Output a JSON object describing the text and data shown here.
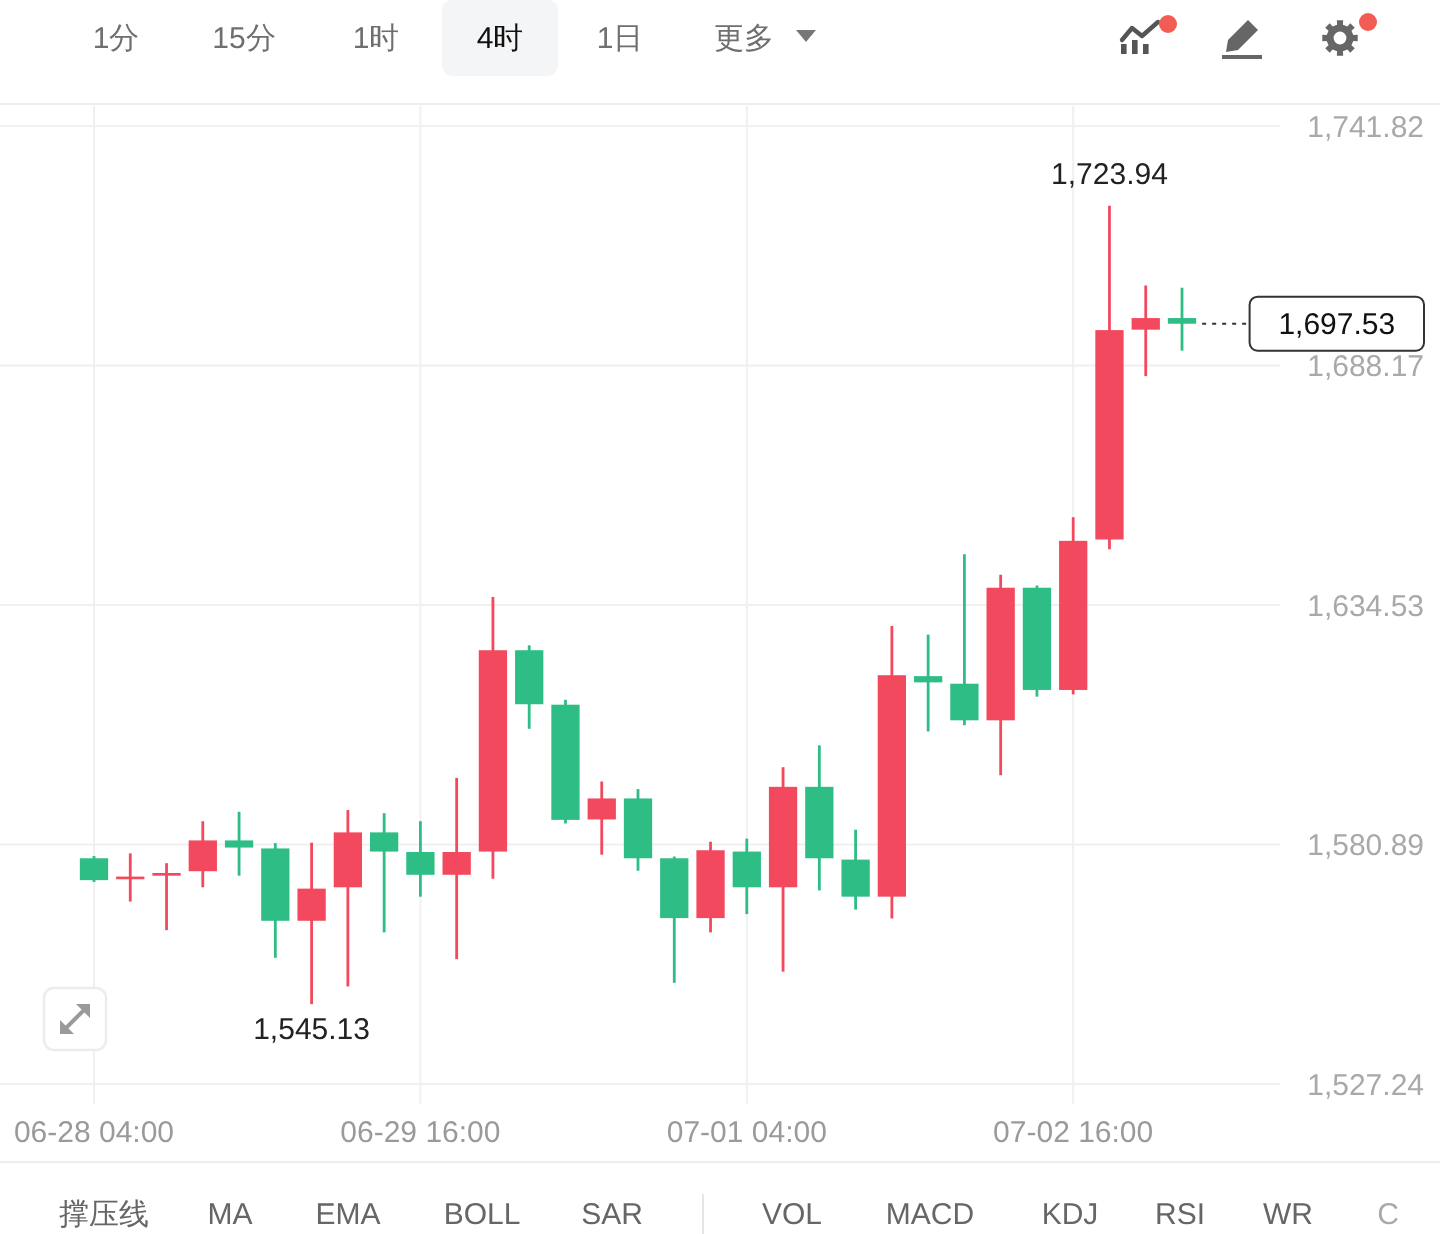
{
  "chart_data": [
    {
      "type": "other",
      "annotations": [
        "1分",
        "15分",
        "1时",
        "4时",
        "1日",
        "更多"
      ]
    },
    {
      "type": "candlestick",
      "categories": [
        "06-28 04:00",
        null,
        null,
        null,
        null,
        null,
        null,
        null,
        null,
        "06-29 16:00",
        null,
        null,
        null,
        null,
        null,
        null,
        null,
        null,
        "07-01 04:00",
        null,
        null,
        null,
        null,
        null,
        null,
        null,
        null,
        "07-02 16:00",
        null,
        null,
        null
      ],
      "ohlc": [
        [
          1577.8,
          1578.3,
          1572.5,
          1572.9
        ],
        [
          1573.1,
          1578.9,
          1568.1,
          1573.7
        ],
        [
          1573.9,
          1576.7,
          1561.7,
          1574.5
        ],
        [
          1574.9,
          1586.1,
          1571.3,
          1581.8
        ],
        [
          1581.8,
          1588.2,
          1573.9,
          1580.2
        ],
        [
          1580.0,
          1581.2,
          1555.5,
          1563.8
        ],
        [
          1563.8,
          1581.3,
          1545.13,
          1571.0
        ],
        [
          1571.3,
          1588.6,
          1549.1,
          1583.6
        ],
        [
          1583.6,
          1587.9,
          1561.2,
          1579.3
        ],
        [
          1579.2,
          1586.1,
          1569.2,
          1574.1
        ],
        [
          1574.1,
          1595.8,
          1555.2,
          1579.2
        ],
        [
          1579.3,
          1636.3,
          1573.2,
          1624.4
        ],
        [
          1624.4,
          1625.5,
          1606.8,
          1612.3
        ],
        [
          1612.2,
          1613.3,
          1585.6,
          1586.4
        ],
        [
          1586.5,
          1595.0,
          1578.6,
          1591.2
        ],
        [
          1591.2,
          1593.3,
          1575.0,
          1577.8
        ],
        [
          1577.8,
          1578.2,
          1549.9,
          1564.4
        ],
        [
          1564.4,
          1581.5,
          1561.2,
          1579.6
        ],
        [
          1579.3,
          1582.2,
          1565.3,
          1571.3
        ],
        [
          1571.3,
          1598.2,
          1552.4,
          1593.8
        ],
        [
          1593.8,
          1603.1,
          1570.6,
          1577.8
        ],
        [
          1577.5,
          1584.2,
          1566.3,
          1569.2
        ],
        [
          1569.2,
          1629.8,
          1564.3,
          1618.8
        ],
        [
          1618.6,
          1627.9,
          1606.2,
          1617.2
        ],
        [
          1616.9,
          1645.9,
          1607.6,
          1608.7
        ],
        [
          1608.7,
          1641.3,
          1596.4,
          1638.4
        ],
        [
          1638.4,
          1638.9,
          1614.0,
          1615.5
        ],
        [
          1615.5,
          1654.2,
          1614.5,
          1648.9
        ],
        [
          1649.2,
          1723.94,
          1647.0,
          1696.1
        ],
        [
          1696.2,
          1706.1,
          1685.8,
          1698.8
        ],
        [
          1698.8,
          1705.6,
          1691.5,
          1697.53
        ]
      ],
      "colors": [
        "#2ebd85",
        "#f2495e",
        "#f2495e",
        "#f2495e",
        "#2ebd85",
        "#2ebd85",
        "#f2495e",
        "#f2495e",
        "#2ebd85",
        "#2ebd85",
        "#f2495e",
        "#f2495e",
        "#2ebd85",
        "#2ebd85",
        "#f2495e",
        "#2ebd85",
        "#2ebd85",
        "#f2495e",
        "#2ebd85",
        "#f2495e",
        "#2ebd85",
        "#2ebd85",
        "#f2495e",
        "#2ebd85",
        "#2ebd85",
        "#f2495e",
        "#2ebd85",
        "#f2495e",
        "#f2495e",
        "#f2495e",
        "#2ebd85"
      ],
      "ylim": [
        1527.24,
        1741.82
      ],
      "yticks": [
        {
          "value": 1527.24,
          "label": "1,527.24"
        },
        {
          "value": 1580.89,
          "label": "1,580.89"
        },
        {
          "value": 1634.53,
          "label": "1,634.53"
        },
        {
          "value": 1688.17,
          "label": "1,688.17"
        },
        {
          "value": 1741.82,
          "label": "1,741.82"
        }
      ],
      "grid": true,
      "annotations": [
        {
          "text": "1,723.94",
          "y": 1723.94
        },
        {
          "text": "1,545.13",
          "y": 1545.13
        }
      ],
      "ref_lines": [
        {
          "axis": "y",
          "value": 1697.53,
          "label": "1,697.53",
          "color": "#333333",
          "line_style": "dotted"
        }
      ]
    },
    {
      "type": "other",
      "annotations": [
        "撑压线",
        "MA",
        "EMA",
        "BOLL",
        "SAR",
        "VOL",
        "MACD",
        "KDJ",
        "RSI",
        "WR",
        "C"
      ]
    }
  ]
}
